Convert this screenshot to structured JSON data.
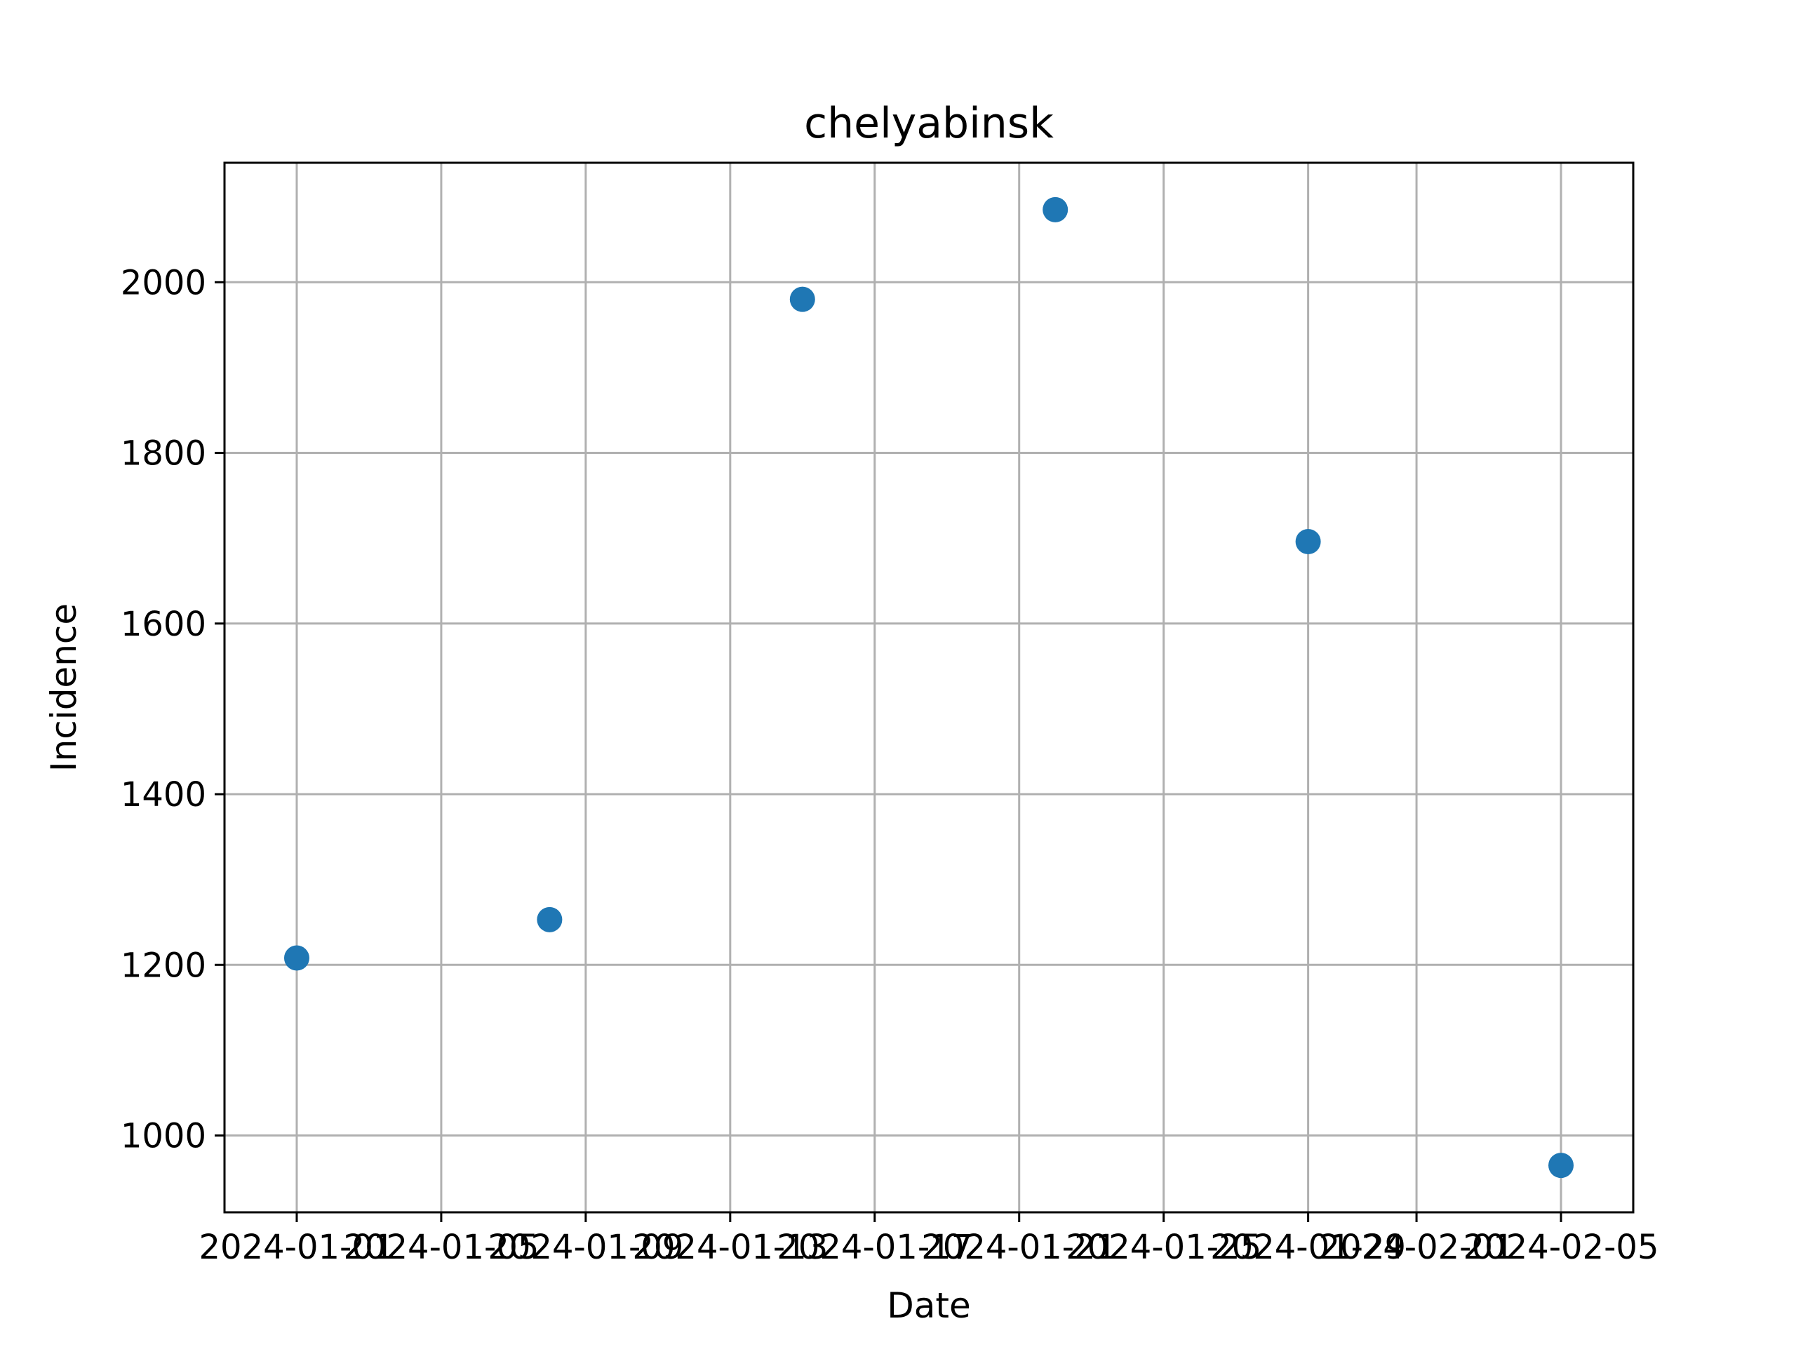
{
  "chart_data": {
    "type": "scatter",
    "title": "chelyabinsk",
    "xlabel": "Date",
    "ylabel": "Incidence",
    "x_tick_labels": [
      "2024-01-01",
      "2024-01-05",
      "2024-01-09",
      "2024-01-13",
      "2024-01-17",
      "2024-01-21",
      "2024-01-25",
      "2024-01-29",
      "2024-02-01",
      "2024-02-05"
    ],
    "y_ticks": [
      1000,
      1200,
      1400,
      1600,
      1800,
      2000
    ],
    "xlim": [
      "2023-12-30",
      "2024-02-07"
    ],
    "ylim": [
      910,
      2140
    ],
    "grid": true,
    "marker_color": "#1f77b4",
    "series": [
      {
        "x": [
          "2024-01-01",
          "2024-01-08",
          "2024-01-15",
          "2024-01-22",
          "2024-01-29",
          "2024-02-05"
        ],
        "y": [
          1208,
          1253,
          1980,
          2085,
          1696,
          965
        ]
      }
    ]
  }
}
